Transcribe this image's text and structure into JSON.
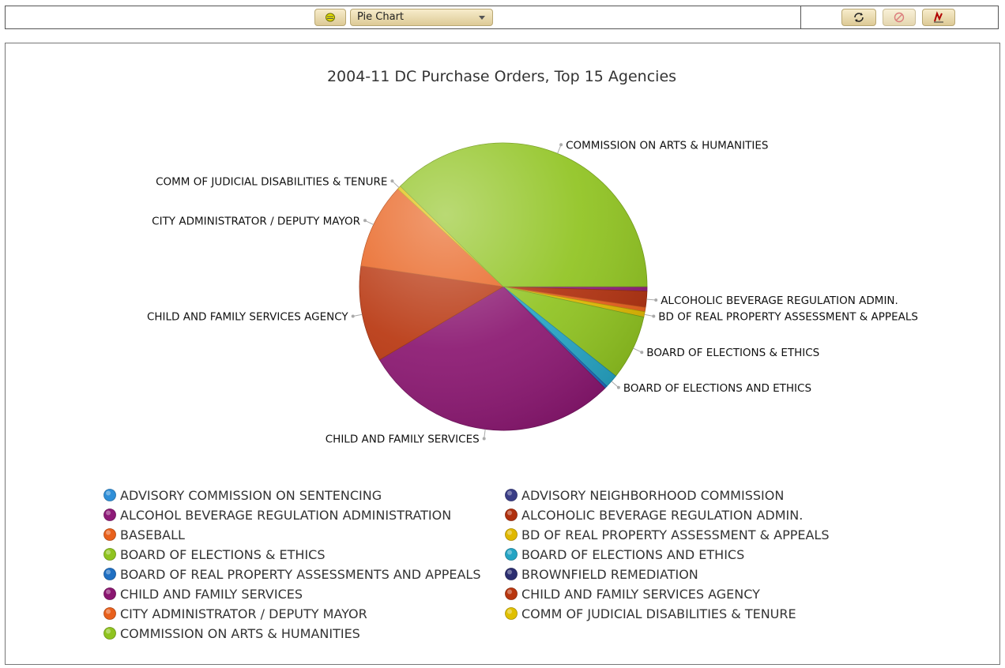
{
  "toolbar": {
    "chart_type_select": "Pie Chart",
    "icons": [
      "database-icon",
      "refresh-icon",
      "stop-icon",
      "edit-icon"
    ]
  },
  "colors": {
    "frame_border": "#555555",
    "button_fill": "#e8d9ab",
    "title_text": "#333333"
  },
  "chart_data": {
    "type": "pie",
    "title": "2004-11 DC Purchase Orders, Top 15 Agencies",
    "legend_position": "bottom",
    "slices": [
      {
        "name": "ADVISORY COMMISSION ON SENTENCING",
        "value": 0.0,
        "label": "",
        "color": "#2f8fd8"
      },
      {
        "name": "ADVISORY NEIGHBORHOOD COMMISSION",
        "value": 0.0,
        "label": "",
        "color": "#3a3d86"
      },
      {
        "name": "ALCOHOL BEVERAGE REGULATION ADMINISTRATION",
        "value": 0.5,
        "label": "",
        "color": "#8e1b78"
      },
      {
        "name": "ALCOHOLIC BEVERAGE REGULATION ADMIN.",
        "value": 1.8,
        "label": "ALCOHOLIC BEVERAGE REGULATION ADMIN.",
        "color": "#b0300e"
      },
      {
        "name": "BASEBALL",
        "value": 0.5,
        "label": "",
        "color": "#e8601c"
      },
      {
        "name": "BD OF REAL PROPERTY ASSESSMENT & APPEALS",
        "value": 0.6,
        "label": "BD OF REAL PROPERTY ASSESSMENT & APPEALS",
        "color": "#e0b800"
      },
      {
        "name": "BOARD OF ELECTIONS & ETHICS",
        "value": 7.3,
        "label": "BOARD OF ELECTIONS & ETHICS",
        "color": "#8fc31f"
      },
      {
        "name": "BOARD OF ELECTIONS AND ETHICS",
        "value": 1.5,
        "label": "BOARD OF ELECTIONS AND ETHICS",
        "color": "#25a4c4"
      },
      {
        "name": "BOARD OF REAL PROPERTY ASSESSMENTS AND APPEALS",
        "value": 0.3,
        "label": "",
        "color": "#1f6fc2"
      },
      {
        "name": "BROWNFIELD REMEDIATION",
        "value": 0.0,
        "label": "",
        "color": "#2c2e70"
      },
      {
        "name": "CHILD AND FAMILY SERVICES",
        "value": 29.0,
        "label": "CHILD AND FAMILY SERVICES",
        "color": "#8a1670"
      },
      {
        "name": "CHILD AND FAMILY SERVICES AGENCY",
        "value": 10.8,
        "label": "CHILD AND FAMILY SERVICES AGENCY",
        "color": "#b8360f"
      },
      {
        "name": "CITY ADMINISTRATOR / DEPUTY MAYOR",
        "value": 9.6,
        "label": "CITY ADMINISTRATOR / DEPUTY MAYOR",
        "color": "#e8601c"
      },
      {
        "name": "COMM OF JUDICIAL DISABILITIES & TENURE",
        "value": 0.4,
        "label": "COMM OF JUDICIAL DISABILITIES & TENURE",
        "color": "#e0c000"
      },
      {
        "name": "COMMISSION ON ARTS & HUMANITIES",
        "value": 37.7,
        "label": "COMMISSION ON ARTS & HUMANITIES",
        "color": "#8fc31f"
      }
    ]
  }
}
